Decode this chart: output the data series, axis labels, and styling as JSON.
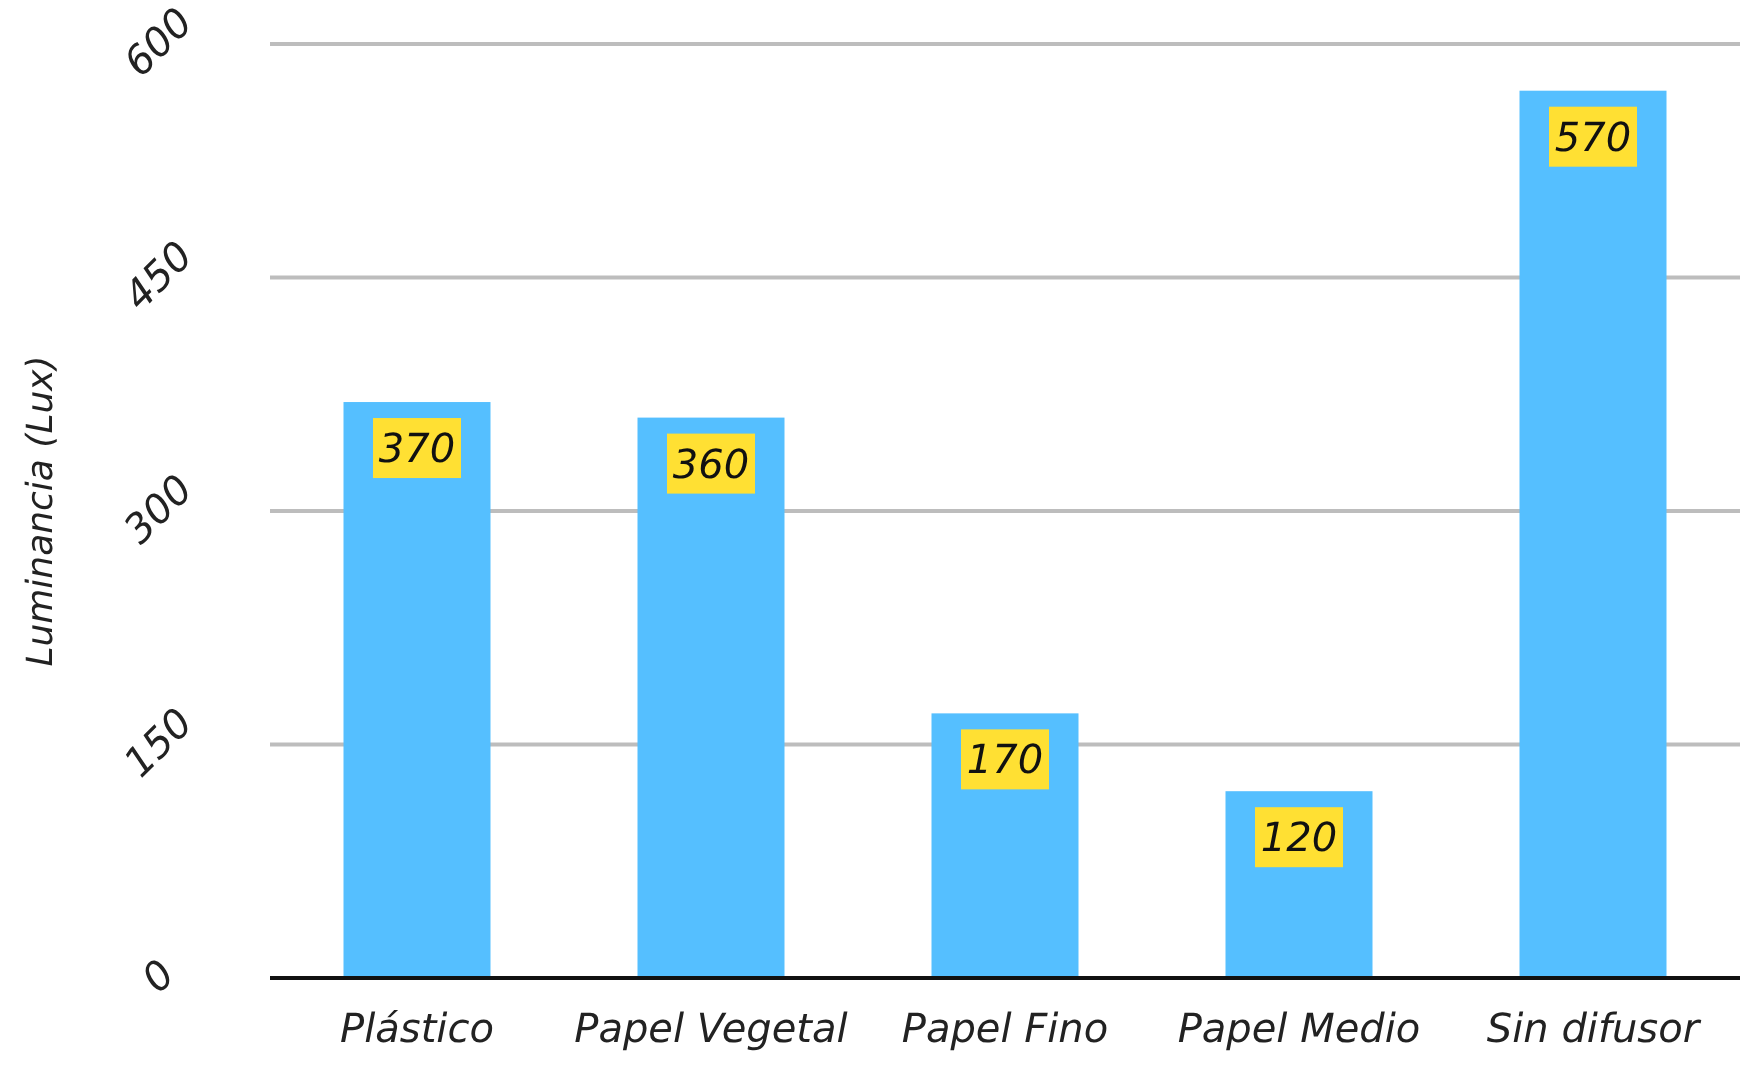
{
  "chart_data": {
    "type": "bar",
    "ylabel": "Luminancia (Lux)",
    "categories": [
      "Plástico",
      "Papel Vegetal",
      "Papel Fino",
      "Papel Medio",
      "Sin difusor"
    ],
    "values": [
      370,
      360,
      170,
      120,
      570
    ],
    "color": "#55bfff",
    "ylim": [
      0,
      600
    ],
    "yticks": [
      0,
      150,
      300,
      450,
      600
    ],
    "grid": "y",
    "data_labels": true
  }
}
